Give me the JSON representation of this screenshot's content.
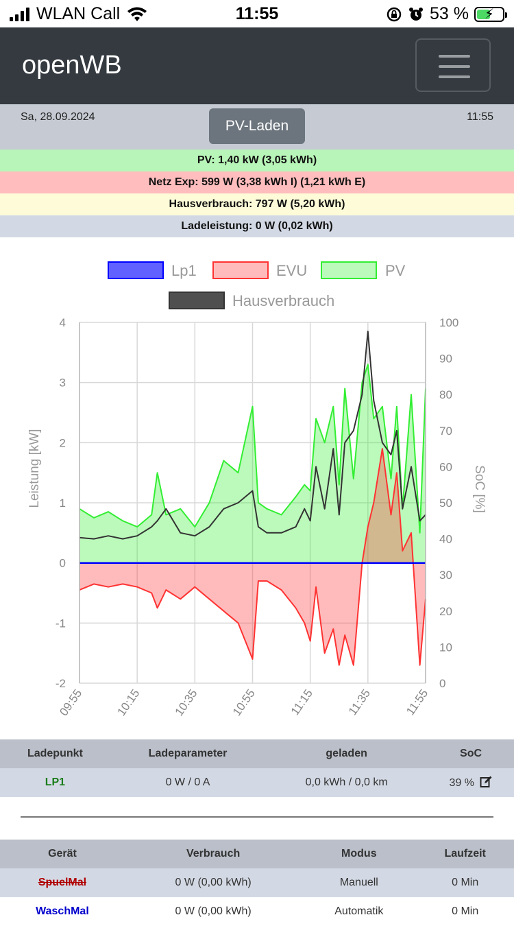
{
  "statusbar": {
    "carrier": "WLAN Call",
    "time": "11:55",
    "battery": "53 %",
    "battery_level": 0.53,
    "icons": [
      "signal-icon",
      "wifi-icon",
      "orientation-lock-icon",
      "alarm-icon",
      "battery-charging-icon"
    ]
  },
  "navbar": {
    "brand": "openWB",
    "menu_icon": "hamburger-icon"
  },
  "info": {
    "date": "Sa, 28.09.2024",
    "time": "11:55",
    "mode_label": "PV-Laden"
  },
  "stats": {
    "pv": "PV: 1,40 kW (3,05 kWh)",
    "grid": "Netz Exp: 599 W (3,38 kWh I) (1,21 kWh E)",
    "house": "Hausverbrauch: 797 W (5,20 kWh)",
    "charge": "Ladeleistung: 0 W (0,02 kWh)"
  },
  "colors": {
    "pv_bg": "#b8f5b8",
    "grid_bg": "#ffbdbd",
    "house_bg": "#fdfbd8",
    "charge_bg": "#d3d9e4",
    "lp1": "#0000ff",
    "evu": "#ff3333",
    "pv": "#33ee33",
    "house": "#333333"
  },
  "chart_data": {
    "type": "line",
    "legend": [
      "Lp1",
      "EVU",
      "PV",
      "Hausverbrauch"
    ],
    "legend_position": "top",
    "ylabel": "Leistung [kW]",
    "y2label": "SoC [%]",
    "ylim": [
      -2,
      4
    ],
    "y_ticks": [
      4,
      3,
      2,
      1,
      0,
      -1,
      -2
    ],
    "y2lim": [
      0,
      100
    ],
    "y2_ticks": [
      100,
      90,
      80,
      70,
      60,
      50,
      40,
      30,
      20,
      10,
      0
    ],
    "x_ticks": [
      "09:55",
      "10:15",
      "10:35",
      "10:55",
      "11:15",
      "11:35",
      "11:55"
    ],
    "grid": true,
    "x_minutes": [
      0,
      5,
      10,
      15,
      20,
      25,
      27,
      30,
      35,
      40,
      45,
      50,
      55,
      60,
      62,
      65,
      70,
      75,
      78,
      80,
      82,
      85,
      88,
      90,
      92,
      95,
      98,
      100,
      102,
      105,
      108,
      110,
      112,
      115,
      118,
      120
    ],
    "series": [
      {
        "name": "Lp1",
        "values": [
          0,
          0,
          0,
          0,
          0,
          0,
          0,
          0,
          0,
          0,
          0,
          0,
          0,
          0,
          0,
          0,
          0,
          0,
          0,
          0,
          0,
          0,
          0,
          0,
          0,
          0,
          0,
          0,
          0,
          0,
          0,
          0,
          0,
          0,
          0,
          0
        ]
      },
      {
        "name": "EVU",
        "values": [
          -0.45,
          -0.35,
          -0.4,
          -0.35,
          -0.4,
          -0.5,
          -0.75,
          -0.45,
          -0.6,
          -0.4,
          -0.6,
          -0.8,
          -1.0,
          -1.6,
          -0.3,
          -0.3,
          -0.45,
          -0.75,
          -1.0,
          -1.3,
          -0.4,
          -1.5,
          -1.1,
          -1.7,
          -1.2,
          -1.7,
          0.0,
          0.6,
          1.0,
          1.9,
          0.8,
          1.5,
          0.2,
          0.5,
          -1.7,
          -0.6
        ]
      },
      {
        "name": "PV",
        "values": [
          0.9,
          0.75,
          0.85,
          0.7,
          0.6,
          0.8,
          1.5,
          0.8,
          0.9,
          0.6,
          1.0,
          1.7,
          1.5,
          2.6,
          1.0,
          0.9,
          0.8,
          1.1,
          1.3,
          1.2,
          2.4,
          2.0,
          2.6,
          1.3,
          2.9,
          1.4,
          3.0,
          3.3,
          2.4,
          2.6,
          1.4,
          2.6,
          0.9,
          2.8,
          0.5,
          2.9
        ]
      },
      {
        "name": "Hausverbrauch",
        "values": [
          0.42,
          0.4,
          0.45,
          0.4,
          0.45,
          0.6,
          0.7,
          0.9,
          0.5,
          0.45,
          0.6,
          0.9,
          1.0,
          1.2,
          0.6,
          0.5,
          0.5,
          0.6,
          0.9,
          0.7,
          1.6,
          0.9,
          1.9,
          0.8,
          2.0,
          2.2,
          2.8,
          3.85,
          2.7,
          2.0,
          1.8,
          2.2,
          0.9,
          1.6,
          0.7,
          0.8
        ]
      }
    ]
  },
  "ladepunkt_table": {
    "headers": [
      "Ladepunkt",
      "Ladeparameter",
      "geladen",
      "SoC"
    ],
    "rows": [
      {
        "name": "LP1",
        "params": "0 W / 0 A",
        "charged": "0,0 kWh / 0,0 km",
        "soc": "39 %"
      }
    ]
  },
  "geraete_table": {
    "headers": [
      "Gerät",
      "Verbrauch",
      "Modus",
      "Laufzeit"
    ],
    "rows": [
      {
        "name": "SpuelMal",
        "usage": "0 W (0,00 kWh)",
        "mode": "Manuell",
        "runtime": "0 Min"
      },
      {
        "name": "WaschMal",
        "usage": "0 W (0,00 kWh)",
        "mode": "Automatik",
        "runtime": "0 Min"
      }
    ]
  }
}
